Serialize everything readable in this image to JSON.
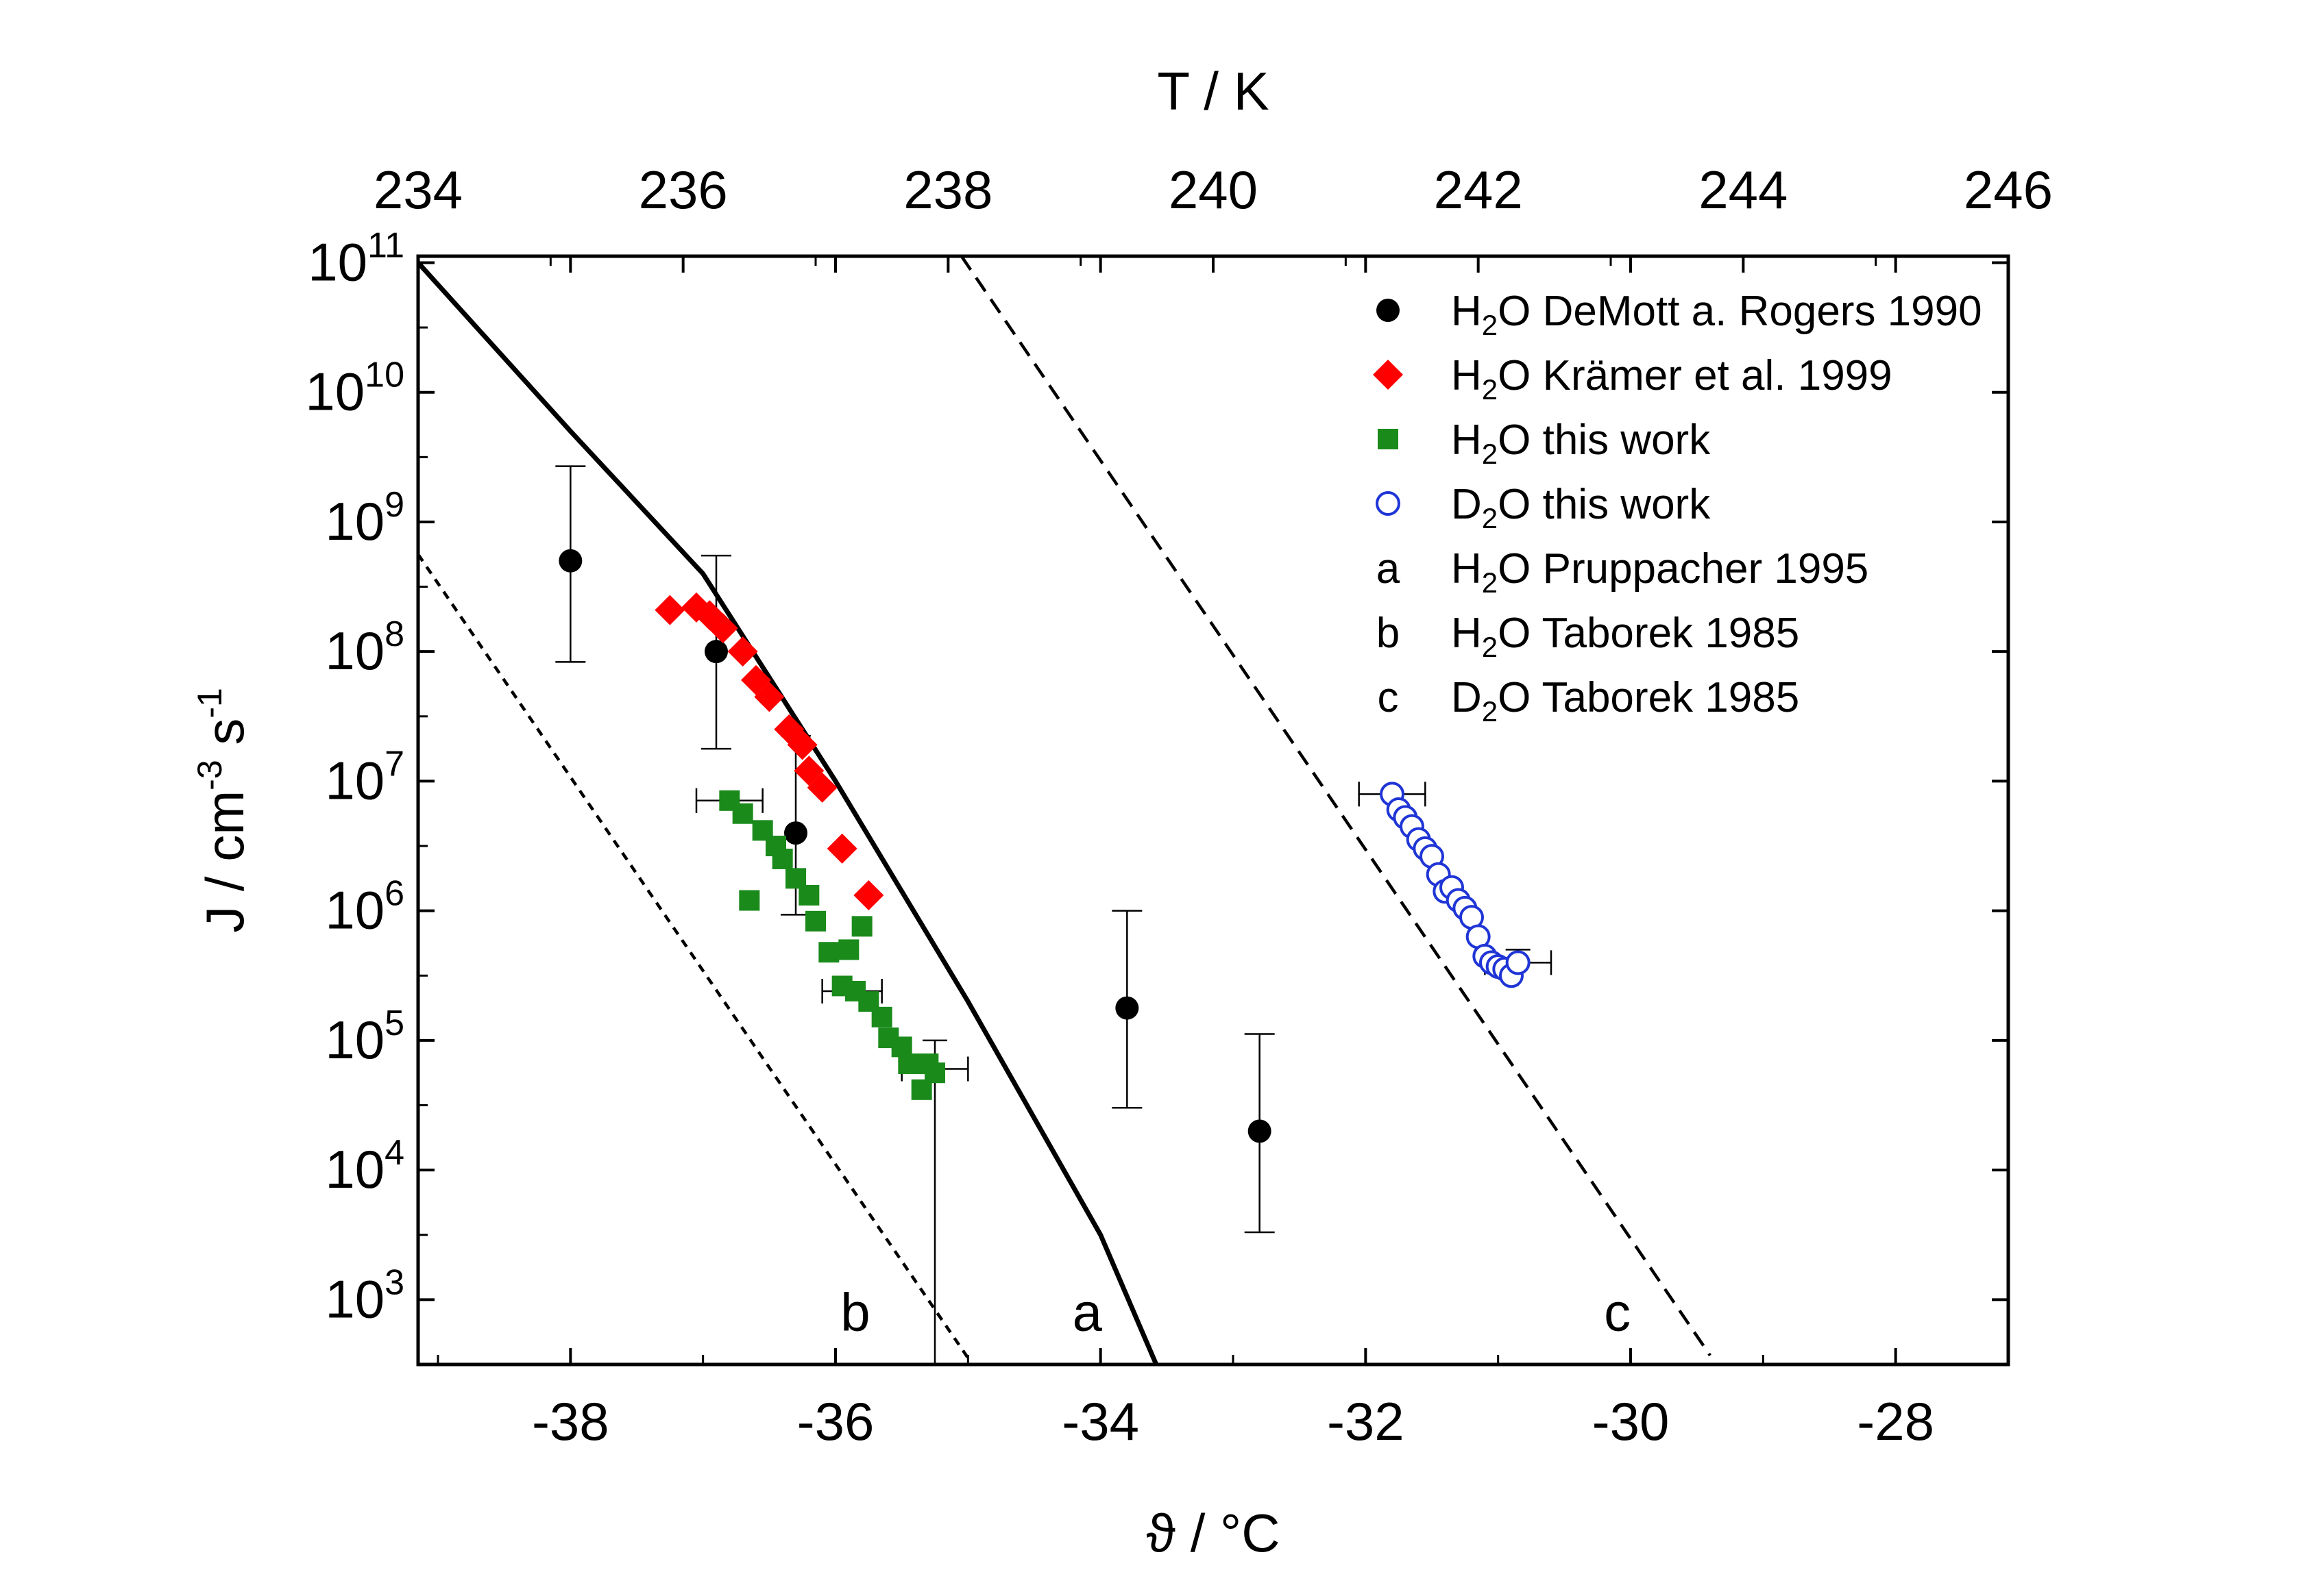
{
  "chart_data": {
    "type": "scatter",
    "top_axis": {
      "label": "T / K",
      "ticks": [
        "234",
        "236",
        "238",
        "240",
        "242",
        "244",
        "246"
      ],
      "tick_values_celsius": [
        -39.15,
        -37.15,
        -35.15,
        -33.15,
        -31.15,
        -29.15,
        -27.15
      ]
    },
    "x_axis": {
      "label": "ϑ / °C",
      "ticks": [
        "-38",
        "-36",
        "-34",
        "-32",
        "-30",
        "-28"
      ],
      "tick_values": [
        -38,
        -36,
        -34,
        -32,
        -30,
        -28
      ],
      "range": [
        -39.15,
        -27.15
      ]
    },
    "y_axis": {
      "label_base": "J / cm",
      "label_exp1": "-3",
      "label_mid": " s",
      "label_exp2": "-1",
      "scale": "log",
      "range_log10": [
        2.5,
        11.05
      ],
      "ticks_exp": [
        "3",
        "4",
        "5",
        "6",
        "7",
        "8",
        "9",
        "10",
        "11"
      ],
      "tick_values": [
        3,
        4,
        5,
        6,
        7,
        8,
        9,
        10,
        11
      ]
    },
    "legend": {
      "placement": "top-right",
      "entries": [
        {
          "marker": "filled-circle",
          "color": "#000000",
          "pre": "H",
          "sub": "2",
          "post": "O DeMott a. Rogers 1990"
        },
        {
          "marker": "diamond",
          "color": "#ff0000",
          "pre": "H",
          "sub": "2",
          "post": "O Krämer et al. 1999"
        },
        {
          "marker": "square",
          "color": "#1a8a1a",
          "pre": "H",
          "sub": "2",
          "post": "O this work"
        },
        {
          "marker": "open-circle",
          "color": "#1f35d6",
          "pre": "D",
          "sub": "2",
          "post": "O this work"
        },
        {
          "marker": "text",
          "symbol": "a",
          "pre": "H",
          "sub": "2",
          "post": "O Pruppacher 1995"
        },
        {
          "marker": "text",
          "symbol": "b",
          "pre": "H",
          "sub": "2",
          "post": "O Taborek 1985"
        },
        {
          "marker": "text",
          "symbol": "c",
          "pre": "D",
          "sub": "2",
          "post": "O Taborek 1985"
        }
      ]
    },
    "series": [
      {
        "name": "H2O DeMott a. Rogers 1990",
        "color": "#000000",
        "points": [
          {
            "x": -38.0,
            "log10y": 8.7,
            "ylo": 7.92,
            "yhi": 9.43
          },
          {
            "x": -36.9,
            "log10y": 8.0,
            "ylo": 7.25,
            "yhi": 8.74
          },
          {
            "x": -36.3,
            "log10y": 6.6,
            "ylo": 5.97,
            "yhi": 7.35
          },
          {
            "x": -33.8,
            "log10y": 5.25,
            "ylo": 4.48,
            "yhi": 6.0
          },
          {
            "x": -32.8,
            "log10y": 4.3,
            "ylo": 3.52,
            "yhi": 5.05
          }
        ]
      },
      {
        "name": "H2O Krämer et al. 1999",
        "color": "#ff0000",
        "points": [
          {
            "x": -37.25,
            "log10y": 8.32
          },
          {
            "x": -37.05,
            "log10y": 8.34
          },
          {
            "x": -36.95,
            "log10y": 8.28
          },
          {
            "x": -36.85,
            "log10y": 8.18
          },
          {
            "x": -36.7,
            "log10y": 8.0
          },
          {
            "x": -36.6,
            "log10y": 7.78
          },
          {
            "x": -36.5,
            "log10y": 7.65
          },
          {
            "x": -36.35,
            "log10y": 7.4
          },
          {
            "x": -36.25,
            "log10y": 7.28
          },
          {
            "x": -36.2,
            "log10y": 7.08
          },
          {
            "x": -36.1,
            "log10y": 6.95
          },
          {
            "x": -35.95,
            "log10y": 6.48
          },
          {
            "x": -35.75,
            "log10y": 6.12
          }
        ]
      },
      {
        "name": "H2O this work",
        "color": "#1a8a1a",
        "points": [
          {
            "x": -36.8,
            "log10y": 6.85
          },
          {
            "x": -36.7,
            "log10y": 6.75
          },
          {
            "x": -36.55,
            "log10y": 6.62
          },
          {
            "x": -36.45,
            "log10y": 6.5
          },
          {
            "x": -36.4,
            "log10y": 6.4
          },
          {
            "x": -36.3,
            "log10y": 6.25
          },
          {
            "x": -36.2,
            "log10y": 6.12
          },
          {
            "x": -36.15,
            "log10y": 5.92
          },
          {
            "x": -36.05,
            "log10y": 5.68
          },
          {
            "x": -35.9,
            "log10y": 5.7
          },
          {
            "x": -35.8,
            "log10y": 5.88
          },
          {
            "x": -35.95,
            "log10y": 5.42
          },
          {
            "x": -35.85,
            "log10y": 5.38
          },
          {
            "x": -35.75,
            "log10y": 5.3
          },
          {
            "x": -35.65,
            "log10y": 5.18
          },
          {
            "x": -35.6,
            "log10y": 5.02
          },
          {
            "x": -35.5,
            "log10y": 4.95
          },
          {
            "x": -35.45,
            "log10y": 4.82
          },
          {
            "x": -35.35,
            "log10y": 4.62
          },
          {
            "x": -35.3,
            "log10y": 4.82
          },
          {
            "x": -35.25,
            "log10y": 4.75
          },
          {
            "x": -36.65,
            "log10y": 6.08
          }
        ],
        "errorbars": [
          {
            "x": -36.8,
            "log10y": 6.85,
            "xlo": -37.05,
            "xhi": -36.55
          },
          {
            "x": -35.9,
            "log10y": 5.38,
            "xlo": -36.1,
            "xhi": -35.65
          },
          {
            "x": -35.25,
            "log10y": 4.78,
            "xlo": -35.5,
            "xhi": -35.0,
            "ylo": 2.5,
            "yhi": 5.0
          }
        ]
      },
      {
        "name": "D2O this work",
        "color": "#1f35d6",
        "points": [
          {
            "x": -31.8,
            "log10y": 6.9
          },
          {
            "x": -31.75,
            "log10y": 6.78
          },
          {
            "x": -31.7,
            "log10y": 6.72
          },
          {
            "x": -31.65,
            "log10y": 6.65
          },
          {
            "x": -31.6,
            "log10y": 6.55
          },
          {
            "x": -31.55,
            "log10y": 6.48
          },
          {
            "x": -31.5,
            "log10y": 6.42
          },
          {
            "x": -31.45,
            "log10y": 6.28
          },
          {
            "x": -31.4,
            "log10y": 6.15
          },
          {
            "x": -31.35,
            "log10y": 6.18
          },
          {
            "x": -31.3,
            "log10y": 6.08
          },
          {
            "x": -31.25,
            "log10y": 6.02
          },
          {
            "x": -31.2,
            "log10y": 5.95
          },
          {
            "x": -31.15,
            "log10y": 5.8
          },
          {
            "x": -31.1,
            "log10y": 5.65
          },
          {
            "x": -31.05,
            "log10y": 5.6
          },
          {
            "x": -31.0,
            "log10y": 5.57
          },
          {
            "x": -30.95,
            "log10y": 5.55
          },
          {
            "x": -30.9,
            "log10y": 5.5
          },
          {
            "x": -30.85,
            "log10y": 5.6
          }
        ],
        "errorbars": [
          {
            "x": -31.8,
            "log10y": 6.9,
            "xlo": -32.05,
            "xhi": -31.55
          },
          {
            "x": -30.85,
            "log10y": 5.6,
            "xlo": -31.1,
            "xhi": -30.6,
            "ylo": 5.42,
            "yhi": 5.7
          }
        ]
      }
    ],
    "curves": [
      {
        "name": "a",
        "style": "solid",
        "points": [
          [
            -39.15,
            11.0
          ],
          [
            -38.0,
            9.7
          ],
          [
            -37.0,
            8.6
          ],
          [
            -36.0,
            7.0
          ],
          [
            -35.0,
            5.3
          ],
          [
            -34.0,
            3.5
          ],
          [
            -33.58,
            2.5
          ]
        ]
      },
      {
        "name": "b",
        "style": "short-dash",
        "points": [
          [
            -39.15,
            8.75
          ],
          [
            -35.0,
            2.55
          ]
        ]
      },
      {
        "name": "c",
        "style": "dash",
        "points": [
          [
            -35.05,
            11.05
          ],
          [
            -29.4,
            2.57
          ]
        ]
      }
    ],
    "curve_labels": [
      {
        "text": "b",
        "x": -35.85,
        "log10y": 2.9
      },
      {
        "text": "a",
        "x": -34.1,
        "log10y": 2.9
      },
      {
        "text": "c",
        "x": -30.1,
        "log10y": 2.9
      }
    ]
  }
}
